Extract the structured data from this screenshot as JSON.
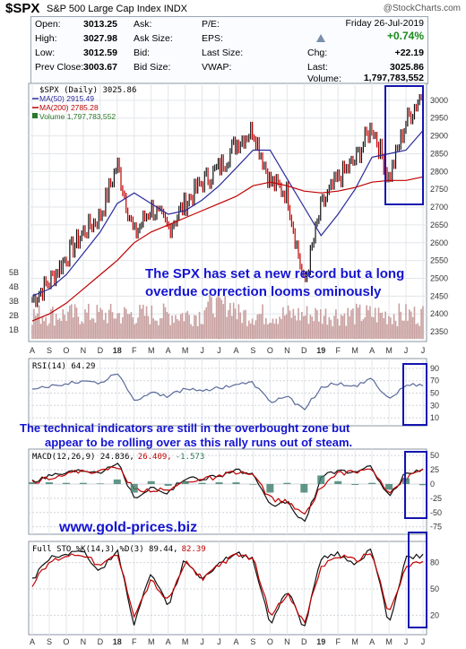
{
  "header": {
    "symbol": "$SPX",
    "name": "S&P 500 Large Cap Index",
    "exchange": "INDX",
    "copyright": "@StockCharts.com"
  },
  "quote": {
    "date": "Friday  26-Jul-2019",
    "open_label": "Open:",
    "open": "3013.25",
    "high_label": "High:",
    "high": "3027.98",
    "low_label": "Low:",
    "low": "3012.59",
    "prev_label": "Prev Close:",
    "prev": "3003.67",
    "ask_label": "Ask:",
    "ask": "",
    "asksize_label": "Ask Size:",
    "asksize": "",
    "bid_label": "Bid:",
    "bid": "",
    "bidsize_label": "Bid Size:",
    "bidsize": "",
    "pe_label": "P/E:",
    "pe": "",
    "eps_label": "EPS:",
    "eps": "",
    "lastsize_label": "Last Size:",
    "lastsize": "",
    "vwap_label": "VWAP:",
    "vwap": "",
    "pct": "+0.74%",
    "chg_label": "Chg:",
    "chg": "+22.19",
    "last_label": "Last:",
    "last": "3025.86",
    "volume_label": "Volume:",
    "volume": "1,797,783,552"
  },
  "legend": {
    "price": "$SPX (Daily) 3025.86",
    "ma50": "MA(50) 2915.49",
    "ma200": "MA(200) 2785.28",
    "volume": "Volume 1,797,783,552"
  },
  "indicators": {
    "rsi": "RSI(14) 64.29",
    "macd_a": "MACD(12,26,9) 24.836,",
    "macd_b": "26.409,",
    "macd_c": "-1.573",
    "sto_a": "Full STO %K(14,3) %D(3) 89.44,",
    "sto_b": "82.39"
  },
  "annotations": {
    "main_line1": "The SPX has set a new record but a long",
    "main_line2": "overdue correction looms ominously",
    "ind_line1": "The technical indicators are still in the overbought zone but",
    "ind_line2": "appear to be rolling over as this rally runs out of steam.",
    "website": "www.gold-prices.biz"
  },
  "colors": {
    "price_up": "#111111",
    "price_down": "#c00000",
    "ma50": "#2a2a9a",
    "ma200": "#c00000",
    "volume": "#c9a0a0",
    "indicator": "#5a6a9a",
    "annotation": "#1414d0",
    "highlight_box": "#1414b0"
  },
  "chart_data": [
    {
      "type": "line",
      "title": "$SPX (Daily) 3025.86",
      "x_ticks": [
        "A",
        "S",
        "O",
        "N",
        "D",
        "18",
        "F",
        "M",
        "A",
        "M",
        "J",
        "J",
        "A",
        "S",
        "O",
        "N",
        "D",
        "19",
        "F",
        "M",
        "A",
        "M",
        "J",
        "J"
      ],
      "y_ticks": [
        2350,
        2400,
        2450,
        2500,
        2550,
        2600,
        2650,
        2700,
        2750,
        2800,
        2850,
        2900,
        2950,
        3000
      ],
      "ylim": [
        2330,
        3040
      ],
      "volume_ticks": [
        "1B",
        "2B",
        "3B",
        "4B",
        "5B"
      ],
      "series": [
        {
          "name": "$SPX (Daily) 3025.86",
          "x": [
            "Aug-17",
            "Sep-17",
            "Oct-17",
            "Nov-17",
            "Dec-17",
            "Jan-18",
            "Feb-18",
            "Mar-18",
            "Apr-18",
            "May-18",
            "Jun-18",
            "Jul-18",
            "Aug-18",
            "Sep-18",
            "Oct-18",
            "Nov-18",
            "Dec-18",
            "Jan-19",
            "Feb-19",
            "Mar-19",
            "Apr-19",
            "May-19",
            "Jun-19",
            "Jul-19"
          ],
          "values": [
            2440,
            2490,
            2560,
            2630,
            2675,
            2820,
            2620,
            2700,
            2640,
            2710,
            2770,
            2810,
            2880,
            2920,
            2770,
            2740,
            2480,
            2700,
            2780,
            2830,
            2930,
            2780,
            2940,
            3026
          ]
        },
        {
          "name": "MA(50) 2915.49",
          "values": [
            2450,
            2470,
            2510,
            2570,
            2630,
            2710,
            2740,
            2710,
            2680,
            2690,
            2720,
            2760,
            2810,
            2860,
            2860,
            2780,
            2700,
            2620,
            2680,
            2750,
            2840,
            2850,
            2860,
            2915
          ]
        },
        {
          "name": "MA(200) 2785.28",
          "values": [
            2380,
            2400,
            2430,
            2470,
            2510,
            2550,
            2600,
            2630,
            2650,
            2670,
            2690,
            2710,
            2730,
            2760,
            2770,
            2760,
            2745,
            2740,
            2745,
            2755,
            2770,
            2775,
            2775,
            2785
          ]
        }
      ]
    },
    {
      "type": "line",
      "title": "RSI(14) 64.29",
      "y_ticks": [
        10,
        30,
        50,
        70,
        90
      ],
      "ylim": [
        0,
        100
      ],
      "series": [
        {
          "name": "RSI(14) 64.29",
          "values": [
            55,
            60,
            66,
            70,
            66,
            84,
            38,
            52,
            45,
            57,
            55,
            58,
            64,
            66,
            35,
            45,
            22,
            60,
            66,
            62,
            72,
            40,
            62,
            64
          ]
        }
      ]
    },
    {
      "type": "line",
      "title": "MACD(12,26,9) 24.836, 26.409, -1.573",
      "y_ticks": [
        -75,
        -50,
        -25,
        0,
        25,
        50
      ],
      "ylim": [
        -85,
        55
      ],
      "series": [
        {
          "name": "MACD(12,26,9) 24.836",
          "values": [
            5,
            15,
            20,
            25,
            22,
            40,
            -25,
            -5,
            -15,
            10,
            10,
            15,
            25,
            15,
            -40,
            -30,
            -70,
            10,
            25,
            20,
            30,
            -25,
            20,
            25
          ]
        },
        {
          "name": "Signal 26.409",
          "values": [
            2,
            12,
            18,
            23,
            21,
            32,
            -10,
            -10,
            -12,
            5,
            8,
            12,
            22,
            16,
            -25,
            -32,
            -55,
            -5,
            20,
            20,
            28,
            -15,
            10,
            26
          ]
        },
        {
          "name": "Histogram -1.573",
          "values": [
            3,
            3,
            2,
            2,
            1,
            8,
            -15,
            5,
            -3,
            5,
            2,
            3,
            3,
            -1,
            -15,
            2,
            -15,
            15,
            5,
            0,
            2,
            -10,
            10,
            -2
          ]
        }
      ]
    },
    {
      "type": "line",
      "title": "Full STO %K(14,3) %D(3) 89.44, 82.39",
      "y_ticks": [
        20,
        50,
        80
      ],
      "ylim": [
        0,
        100
      ],
      "series": [
        {
          "name": "%K 89.44",
          "values": [
            60,
            85,
            90,
            92,
            70,
            95,
            10,
            70,
            30,
            85,
            60,
            80,
            90,
            85,
            10,
            50,
            5,
            85,
            90,
            80,
            95,
            10,
            85,
            89
          ]
        },
        {
          "name": "%D 82.39",
          "values": [
            55,
            80,
            88,
            90,
            75,
            90,
            20,
            60,
            35,
            80,
            62,
            78,
            88,
            86,
            20,
            45,
            10,
            75,
            88,
            82,
            92,
            20,
            75,
            82
          ]
        }
      ]
    }
  ]
}
